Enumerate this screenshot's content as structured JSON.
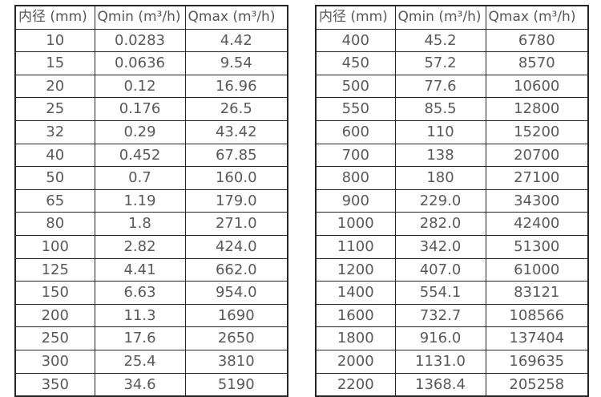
{
  "page": {
    "background_color": "#ffffff",
    "border_color": "#262626",
    "text_color": "#595959"
  },
  "tables": {
    "left": {
      "headers": [
        "内径 (mm)",
        "Qmin (m³/h)",
        "Qmax (m³/h)"
      ],
      "rows": [
        [
          "10",
          "0.0283",
          "4.42"
        ],
        [
          "15",
          "0.0636",
          "9.54"
        ],
        [
          "20",
          "0.12",
          "16.96"
        ],
        [
          "25",
          "0.176",
          "26.5"
        ],
        [
          "32",
          "0.29",
          "43.42"
        ],
        [
          "40",
          "0.452",
          "67.85"
        ],
        [
          "50",
          "0.7",
          "160.0"
        ],
        [
          "65",
          "1.19",
          "179.0"
        ],
        [
          "80",
          "1.8",
          "271.0"
        ],
        [
          "100",
          "2.82",
          "424.0"
        ],
        [
          "125",
          "4.41",
          "662.0"
        ],
        [
          "150",
          "6.63",
          "954.0"
        ],
        [
          "200",
          "11.3",
          "1690"
        ],
        [
          "250",
          "17.6",
          "2650"
        ],
        [
          "300",
          "25.4",
          "3810"
        ],
        [
          "350",
          "34.6",
          "5190"
        ]
      ]
    },
    "right": {
      "headers": [
        "内径 (mm)",
        "Qmin (m³/h)",
        "Qmax (m³/h)"
      ],
      "rows": [
        [
          "400",
          "45.2",
          "6780"
        ],
        [
          "450",
          "57.2",
          "8570"
        ],
        [
          "500",
          "77.6",
          "10600"
        ],
        [
          "550",
          "85.5",
          "12800"
        ],
        [
          "600",
          "110",
          "15200"
        ],
        [
          "700",
          "138",
          "20700"
        ],
        [
          "800",
          "180",
          "27100"
        ],
        [
          "900",
          "229.0",
          "34300"
        ],
        [
          "1000",
          "282.0",
          "42400"
        ],
        [
          "1100",
          "342.0",
          "51300"
        ],
        [
          "1200",
          "407.0",
          "61000"
        ],
        [
          "1400",
          "554.1",
          "83121"
        ],
        [
          "1600",
          "732.7",
          "108566"
        ],
        [
          "1800",
          "916.0",
          "137404"
        ],
        [
          "2000",
          "1131.0",
          "169635"
        ],
        [
          "2200",
          "1368.4",
          "205258"
        ]
      ]
    }
  }
}
